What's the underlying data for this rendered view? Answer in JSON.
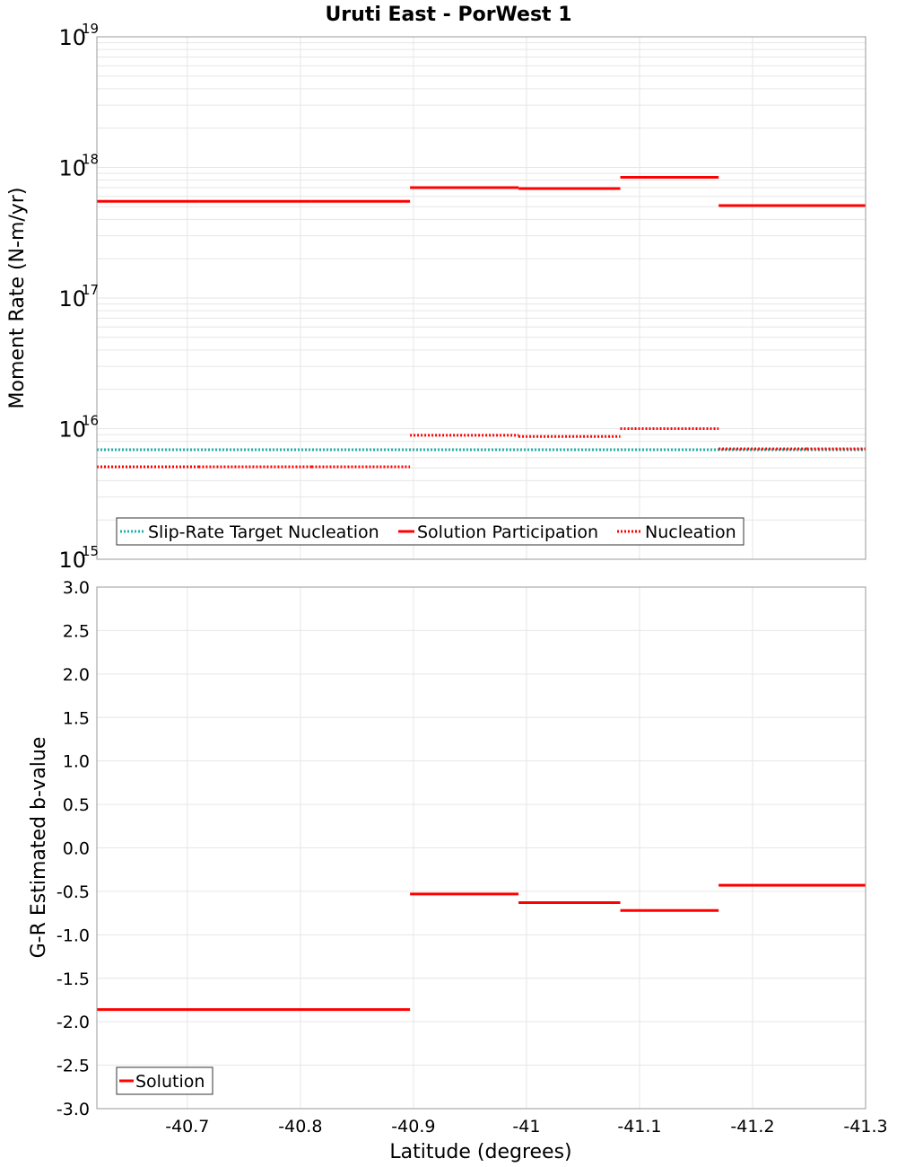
{
  "title": "Uruti East - PorWest 1",
  "xlabel": "Latitude (degrees)",
  "colors": {
    "solution": "#ff0000",
    "target": "#20b2aa",
    "grid": "#e6e6e6",
    "frame": "#999999"
  },
  "chart_data": [
    {
      "type": "line",
      "id": "moment",
      "yscale": "log",
      "ylabel": "Moment Rate (N-m/yr)",
      "xlim": [
        -40.62,
        -41.3
      ],
      "ylim_exp": [
        15,
        19
      ],
      "ytick_exps": [
        15,
        16,
        17,
        18,
        19
      ],
      "series": [
        {
          "name": "Solution Participation",
          "style": "solid",
          "color": "#ff0000",
          "segments": [
            {
              "x": [
                -40.62,
                -40.71
              ],
              "y": 5.5e+17
            },
            {
              "x": [
                -40.71,
                -40.81
              ],
              "y": 5.5e+17
            },
            {
              "x": [
                -40.81,
                -40.897
              ],
              "y": 5.5e+17
            },
            {
              "x": [
                -40.897,
                -40.993
              ],
              "y": 7e+17
            },
            {
              "x": [
                -40.993,
                -41.083
              ],
              "y": 6.9e+17
            },
            {
              "x": [
                -41.083,
                -41.17
              ],
              "y": 8.4e+17
            },
            {
              "x": [
                -41.17,
                -41.248
              ],
              "y": 5.1e+17
            },
            {
              "x": [
                -41.248,
                -41.3
              ],
              "y": 5.1e+17
            }
          ]
        },
        {
          "name": "Nucleation",
          "style": "dotted",
          "color": "#ff0000",
          "segments": [
            {
              "x": [
                -40.62,
                -40.71
              ],
              "y": 5100000000000000.0
            },
            {
              "x": [
                -40.71,
                -40.81
              ],
              "y": 5100000000000000.0
            },
            {
              "x": [
                -40.81,
                -40.897
              ],
              "y": 5100000000000000.0
            },
            {
              "x": [
                -40.897,
                -40.993
              ],
              "y": 8900000000000000.0
            },
            {
              "x": [
                -40.993,
                -41.083
              ],
              "y": 8700000000000000.0
            },
            {
              "x": [
                -41.083,
                -41.17
              ],
              "y": 1e+16
            },
            {
              "x": [
                -41.17,
                -41.248
              ],
              "y": 7000000000000000.0
            },
            {
              "x": [
                -41.248,
                -41.3
              ],
              "y": 7000000000000000.0
            }
          ]
        },
        {
          "name": "Slip-Rate Target Nucleation",
          "style": "dotted",
          "color": "#20b2aa",
          "segments": [
            {
              "x": [
                -40.62,
                -41.3
              ],
              "y": 6900000000000000.0
            }
          ]
        }
      ],
      "legend": [
        "Slip-Rate Target Nucleation",
        "Solution Participation",
        "Nucleation"
      ],
      "legend_position": "bottom-left"
    },
    {
      "type": "line",
      "id": "bvalue",
      "yscale": "linear",
      "ylabel": "G-R Estimated b-value",
      "xlim": [
        -40.62,
        -41.3
      ],
      "ylim": [
        -3.0,
        3.0
      ],
      "yticks": [
        "3.0",
        "2.5",
        "2.0",
        "1.5",
        "1.0",
        "0.5",
        "0.0",
        "-0.5",
        "-1.0",
        "-1.5",
        "-2.0",
        "-2.5",
        "-3.0"
      ],
      "xticks": [
        "-40.7",
        "-40.8",
        "-40.9",
        "-41",
        "-41.1",
        "-41.2",
        "-41.3"
      ],
      "series": [
        {
          "name": "Solution",
          "style": "solid",
          "color": "#ff0000",
          "segments": [
            {
              "x": [
                -40.62,
                -40.897
              ],
              "y": -1.86
            },
            {
              "x": [
                -40.897,
                -40.993
              ],
              "y": -0.53
            },
            {
              "x": [
                -40.993,
                -41.083
              ],
              "y": -0.63
            },
            {
              "x": [
                -41.083,
                -41.17
              ],
              "y": -0.72
            },
            {
              "x": [
                -41.17,
                -41.3
              ],
              "y": -0.43
            }
          ]
        }
      ],
      "legend": [
        "Solution"
      ],
      "legend_position": "bottom-left"
    }
  ]
}
